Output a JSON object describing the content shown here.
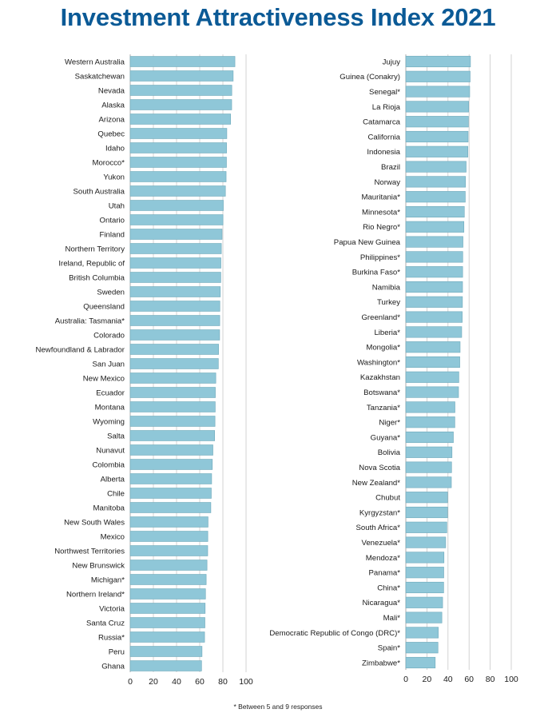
{
  "title": "Investment Attractiveness Index 2021",
  "footnote": "* Between 5 and 9 responses",
  "colors": {
    "title": "#0b5a96",
    "bar": "#8fc7d8",
    "grid": "#c8c8c8"
  },
  "chart_data": [
    {
      "type": "bar",
      "orientation": "horizontal",
      "xlim": [
        0,
        100
      ],
      "xticks": [
        "0",
        "20",
        "40",
        "60",
        "80",
        "100"
      ],
      "grid": true,
      "categories": [
        "Western Australia",
        "Saskatchewan",
        "Nevada",
        "Alaska",
        "Arizona",
        "Quebec",
        "Idaho",
        "Morocco*",
        "Yukon",
        "South Australia",
        "Utah",
        "Ontario",
        "Finland",
        "Northern Territory",
        "Ireland, Republic of",
        "British Columbia",
        "Sweden",
        "Queensland",
        "Australia: Tasmania*",
        "Colorado",
        "Newfoundland & Labrador",
        "San Juan",
        "New Mexico",
        "Ecuador",
        "Montana",
        "Wyoming",
        "Salta",
        "Nunavut",
        "Colombia",
        "Alberta",
        "Chile",
        "Manitoba",
        "New South Wales",
        "Mexico",
        "Northwest Territories",
        "New Brunswick",
        "Michigan*",
        "Northern Ireland*",
        "Victoria",
        "Santa Cruz",
        "Russia*",
        "Peru",
        "Ghana"
      ],
      "values": [
        90.4,
        88.9,
        87.7,
        87.6,
        86.7,
        83.4,
        83.2,
        83.1,
        82.8,
        82.2,
        80.4,
        80.1,
        79.3,
        78.7,
        78.3,
        78.2,
        77.8,
        77.4,
        77.3,
        77.2,
        76.3,
        76.1,
        73.9,
        73.5,
        73.4,
        73.2,
        72.9,
        71.4,
        70.9,
        70.3,
        70.0,
        69.6,
        67.2,
        67.0,
        66.9,
        66.3,
        65.6,
        65.0,
        64.7,
        64.5,
        64.2,
        62.0,
        61.6
      ]
    },
    {
      "type": "bar",
      "orientation": "horizontal",
      "xlim": [
        0,
        100
      ],
      "xticks": [
        "0",
        "20",
        "40",
        "60",
        "80",
        "100"
      ],
      "grid": true,
      "categories": [
        "Jujuy",
        "Guinea (Conakry)",
        "Senegal*",
        "La Rioja",
        "Catamarca",
        "California",
        "Indonesia",
        "Brazil",
        "Norway",
        "Mauritania*",
        "Minnesota*",
        "Rio Negro*",
        "Papua New Guinea",
        "Philippines*",
        "Burkina Faso*",
        "Namibia",
        "Turkey",
        "Greenland*",
        "Liberia*",
        "Mongolia*",
        "Washington*",
        "Kazakhstan",
        "Botswana*",
        "Tanzania*",
        "Niger*",
        "Guyana*",
        "Bolivia",
        "Nova Scotia",
        "New Zealand*",
        "Chubut",
        "Kyrgyzstan*",
        "South Africa*",
        "Venezuela*",
        "Mendoza*",
        "Panama*",
        "China*",
        "Nicaragua*",
        "Mali*",
        "Democratic Republic of Congo (DRC)*",
        "Spain*",
        "Zimbabwe*"
      ],
      "values": [
        61.3,
        61.0,
        60.6,
        59.6,
        59.4,
        59.1,
        58.9,
        57.2,
        56.6,
        56.4,
        55.5,
        55.1,
        54.2,
        54.0,
        53.9,
        53.8,
        53.7,
        53.5,
        53.0,
        51.5,
        51.2,
        50.3,
        50.0,
        46.6,
        46.5,
        45.1,
        43.8,
        43.4,
        43.2,
        39.6,
        39.6,
        38.9,
        37.8,
        36.2,
        36.0,
        35.9,
        34.9,
        34.2,
        30.8,
        30.5,
        27.9
      ]
    }
  ]
}
